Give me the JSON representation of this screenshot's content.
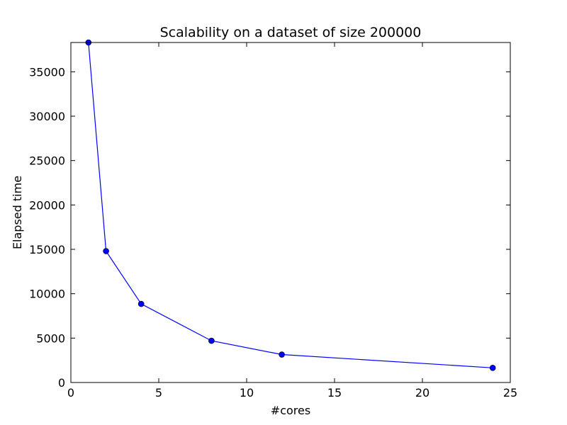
{
  "chart_data": {
    "type": "line",
    "title": "Scalability on a dataset of size 200000",
    "xlabel": "#cores",
    "ylabel": "Elapsed time",
    "xlim": [
      0,
      25
    ],
    "ylim": [
      0,
      38300
    ],
    "xticks": [
      0,
      5,
      10,
      15,
      20,
      25
    ],
    "yticks": [
      0,
      5000,
      10000,
      15000,
      20000,
      25000,
      30000,
      35000
    ],
    "grid": false,
    "series": [
      {
        "color": "#0000ff",
        "marker": "circle",
        "points": [
          {
            "x": 1,
            "y": 38300
          },
          {
            "x": 2,
            "y": 14800
          },
          {
            "x": 4,
            "y": 8850
          },
          {
            "x": 8,
            "y": 4700
          },
          {
            "x": 12,
            "y": 3150
          },
          {
            "x": 24,
            "y": 1650
          }
        ]
      }
    ]
  }
}
